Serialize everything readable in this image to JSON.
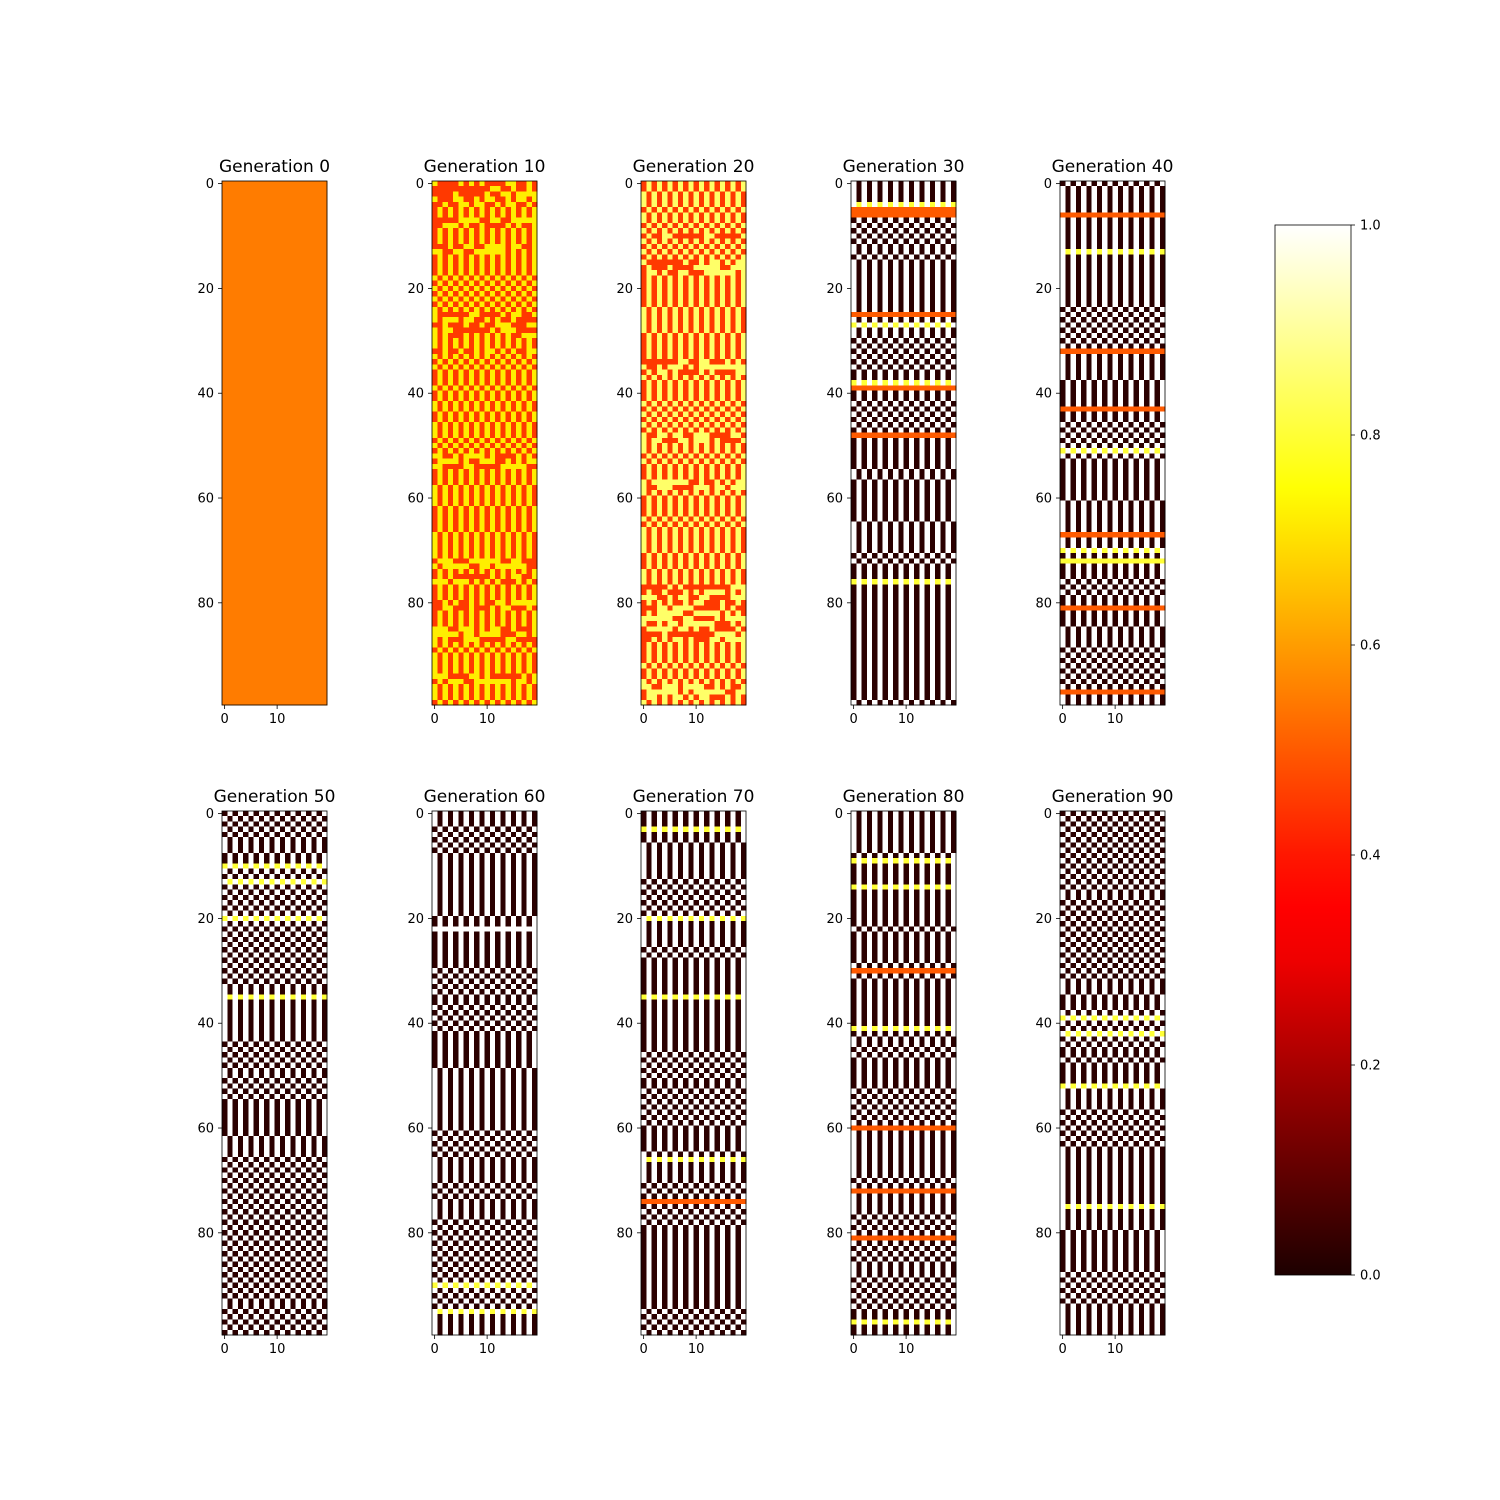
{
  "chart_data": {
    "type": "heatmap",
    "colormap": "hot",
    "description_values": "grid of 100 rows x 20 columns per generation, values in [0,1]",
    "grid": {
      "rows": 100,
      "cols": 20
    },
    "panels": [
      {
        "title": "Generation 0",
        "generation": 0,
        "pattern": "uniform",
        "value": 0.55
      },
      {
        "title": "Generation 10",
        "generation": 10,
        "pattern": "mixed",
        "low": 0.45,
        "high": 0.72,
        "seed": 10
      },
      {
        "title": "Generation 20",
        "generation": 20,
        "pattern": "mixed",
        "low": 0.45,
        "high": 0.85,
        "seed": 20
      },
      {
        "title": "Generation 30",
        "generation": 30,
        "pattern": "binary",
        "seed": 30,
        "band_rows": [
          5,
          6,
          25,
          39,
          48
        ]
      },
      {
        "title": "Generation 40",
        "generation": 40,
        "pattern": "binary",
        "seed": 40,
        "band_rows": [
          6,
          32,
          43,
          67,
          72,
          81,
          97
        ]
      },
      {
        "title": "Generation 50",
        "generation": 50,
        "pattern": "binary",
        "seed": 50,
        "band_rows": []
      },
      {
        "title": "Generation 60",
        "generation": 60,
        "pattern": "binary",
        "seed": 60,
        "band_rows": []
      },
      {
        "title": "Generation 70",
        "generation": 70,
        "pattern": "binary",
        "seed": 70,
        "band_rows": [
          74
        ]
      },
      {
        "title": "Generation 80",
        "generation": 80,
        "pattern": "binary",
        "seed": 80,
        "band_rows": [
          30,
          60,
          72,
          81
        ]
      },
      {
        "title": "Generation 90",
        "generation": 90,
        "pattern": "binary",
        "seed": 90,
        "band_rows": []
      }
    ],
    "y_ticks": [
      "0",
      "20",
      "40",
      "60",
      "80"
    ],
    "y_tick_values": [
      0,
      20,
      40,
      60,
      80
    ],
    "x_ticks": [
      "0",
      "10"
    ],
    "x_tick_values": [
      0,
      10
    ],
    "colorbar": {
      "range": [
        0.0,
        1.0
      ],
      "ticks": [
        "0.0",
        "0.2",
        "0.4",
        "0.6",
        "0.8",
        "1.0"
      ],
      "tick_values": [
        0.0,
        0.2,
        0.4,
        0.6,
        0.8,
        1.0
      ]
    }
  }
}
